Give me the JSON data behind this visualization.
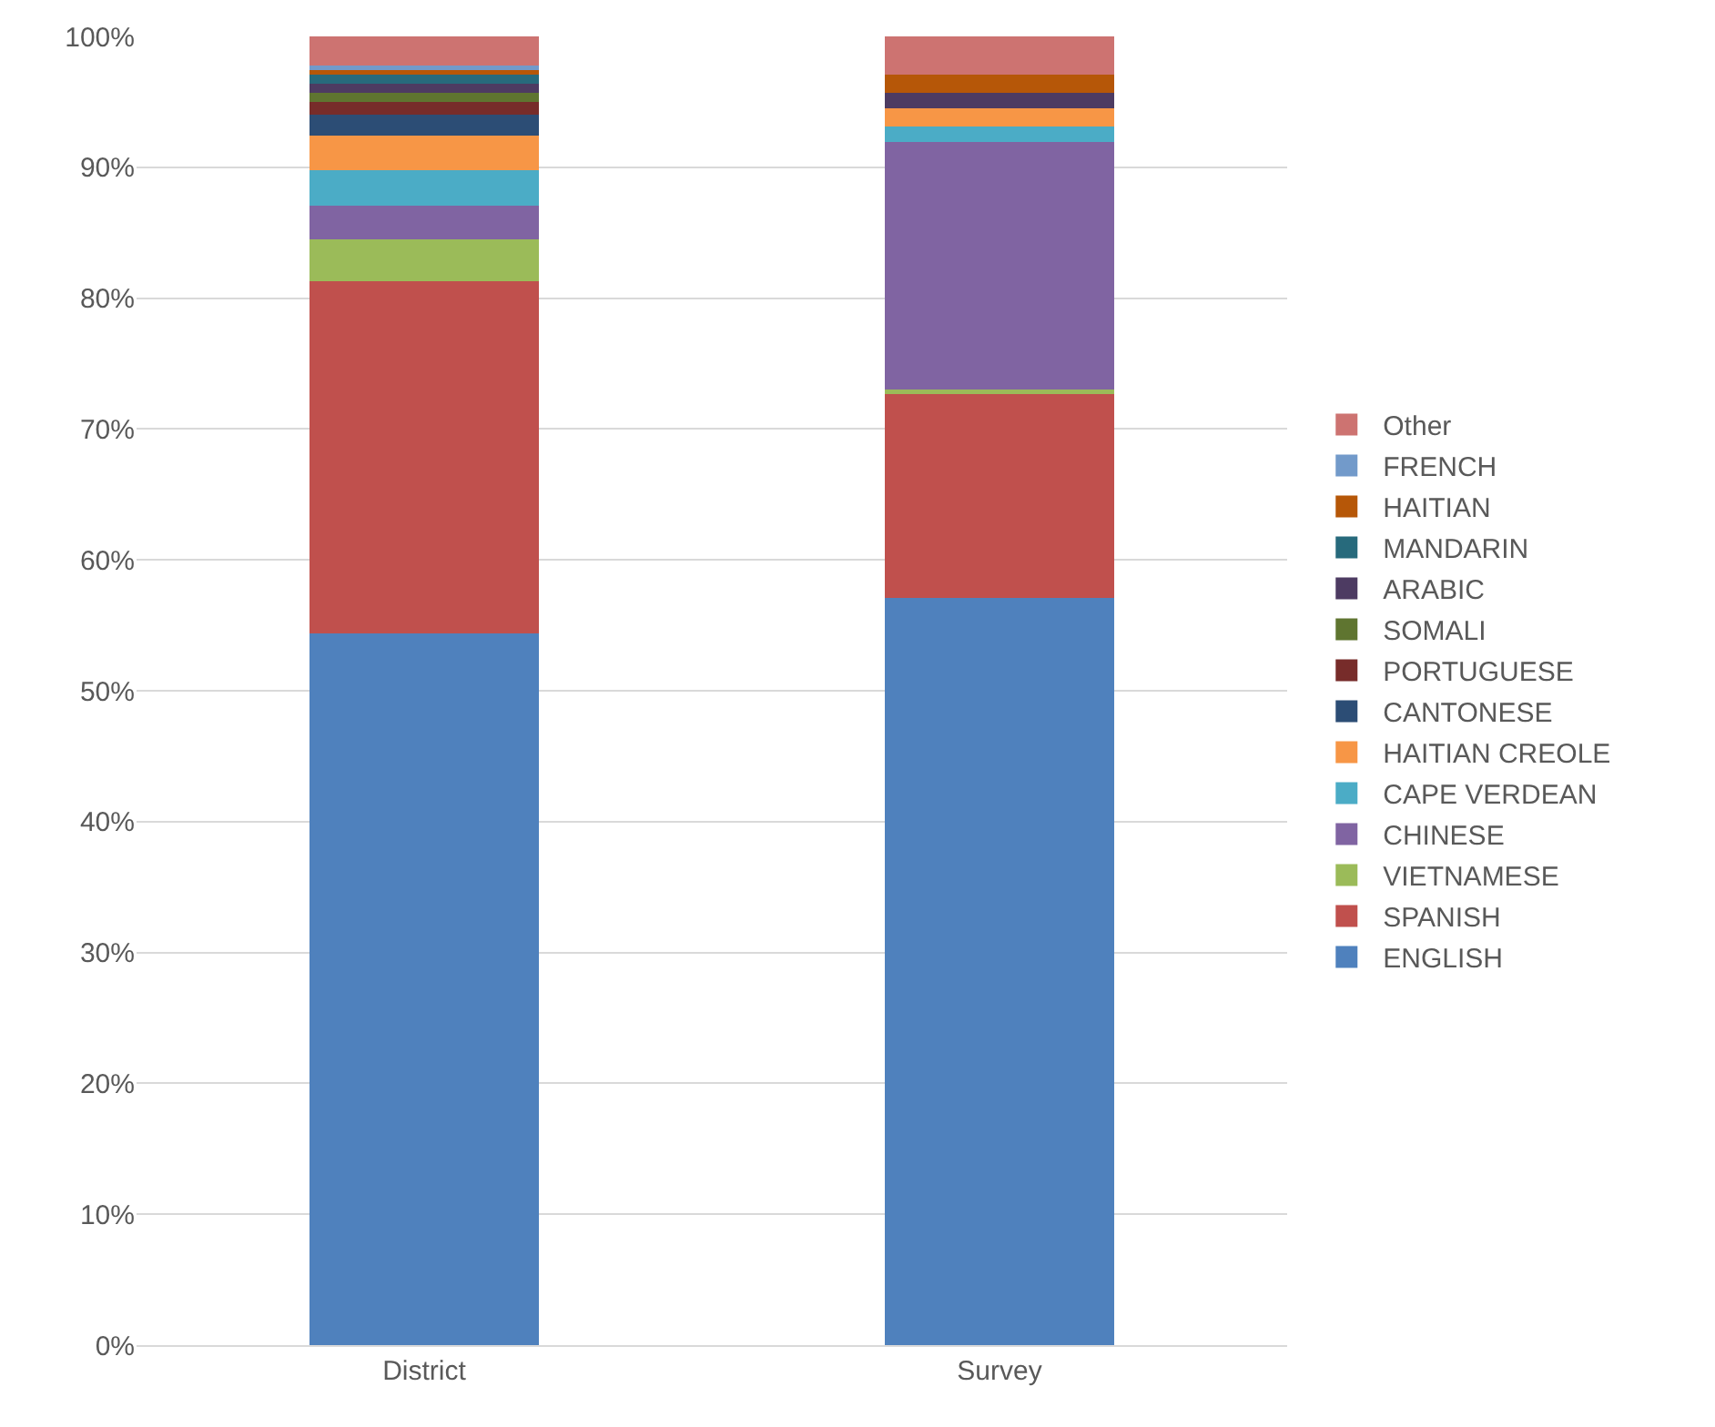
{
  "chart_data": {
    "type": "bar",
    "stacked": true,
    "categories": [
      "District",
      "Survey"
    ],
    "series": [
      {
        "name": "ENGLISH",
        "color": "#4f81bd",
        "values": [
          54.4,
          57.1
        ]
      },
      {
        "name": "SPANISH",
        "color": "#c0504d",
        "values": [
          26.9,
          15.6
        ]
      },
      {
        "name": "VIETNAMESE",
        "color": "#9bbb59",
        "values": [
          3.2,
          0.3
        ]
      },
      {
        "name": "CHINESE",
        "color": "#8064a2",
        "values": [
          2.6,
          18.9
        ]
      },
      {
        "name": "CAPE VERDEAN",
        "color": "#4bacc6",
        "values": [
          2.7,
          1.2
        ]
      },
      {
        "name": "HAITIAN CREOLE",
        "color": "#f79646",
        "values": [
          2.6,
          1.4
        ]
      },
      {
        "name": "CANTONESE",
        "color": "#2c4d75",
        "values": [
          1.6,
          0
        ]
      },
      {
        "name": "PORTUGUESE",
        "color": "#772c2a",
        "values": [
          1.0,
          0
        ]
      },
      {
        "name": "SOMALI",
        "color": "#5f7530",
        "values": [
          0.7,
          0
        ]
      },
      {
        "name": "ARABIC",
        "color": "#4d3b62",
        "values": [
          0.7,
          1.2
        ]
      },
      {
        "name": "MANDARIN",
        "color": "#276a7c",
        "values": [
          0.8,
          0
        ]
      },
      {
        "name": "HAITIAN",
        "color": "#b65708",
        "values": [
          0.2,
          1.4
        ]
      },
      {
        "name": "FRENCH",
        "color": "#729aca",
        "values": [
          0.4,
          0
        ]
      },
      {
        "name": "Other",
        "color": "#cd7371",
        "values": [
          2.2,
          2.9
        ]
      }
    ],
    "ylim": [
      0,
      100
    ],
    "yticks": [
      {
        "value": 0,
        "label": "0%"
      },
      {
        "value": 10,
        "label": "10%"
      },
      {
        "value": 20,
        "label": "20%"
      },
      {
        "value": 30,
        "label": "30%"
      },
      {
        "value": 40,
        "label": "40%"
      },
      {
        "value": 50,
        "label": "50%"
      },
      {
        "value": 60,
        "label": "60%"
      },
      {
        "value": 70,
        "label": "70%"
      },
      {
        "value": 80,
        "label": "80%"
      },
      {
        "value": 90,
        "label": "90%"
      },
      {
        "value": 100,
        "label": "100%"
      }
    ],
    "grid": "y",
    "legend": "right"
  }
}
